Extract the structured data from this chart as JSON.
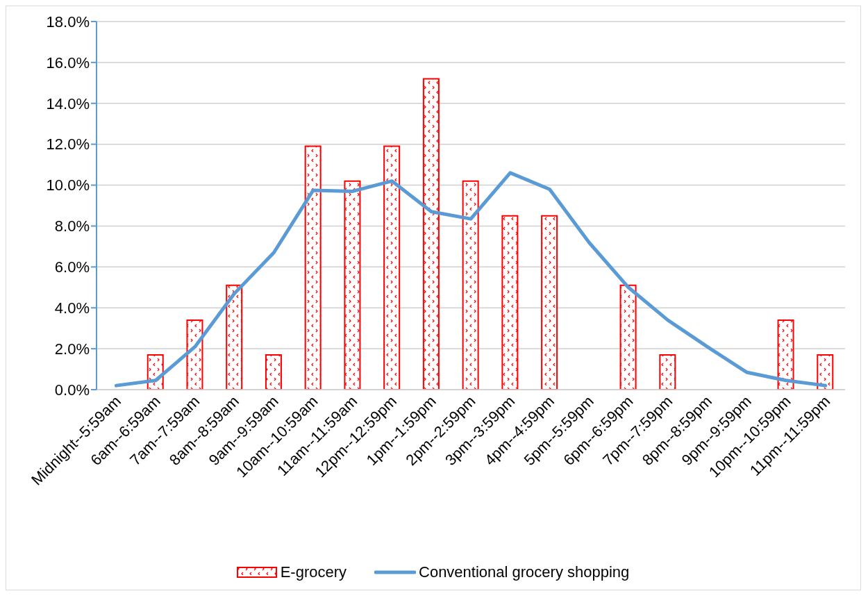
{
  "chart_data": {
    "type": "bar",
    "categories": [
      "Midnight--5:59am",
      "6am--6:59am",
      "7am--7:59am",
      "8am--8:59am",
      "9am--9:59am",
      "10am--10:59am",
      "11am--11:59am",
      "12pm--12:59pm",
      "1pm--1:59pm",
      "2pm--2:59pm",
      "3pm--3:59pm",
      "4pm--4:59pm",
      "5pm--5:59pm",
      "6pm--6:59pm",
      "7pm--7:59pm",
      "8pm--8:59pm",
      "9pm--9:59pm",
      "10pm--10:59pm",
      "11pm--11:59pm"
    ],
    "series": [
      {
        "name": "E-grocery",
        "color": "#ff0000",
        "values": [
          null,
          1.7,
          3.4,
          5.1,
          1.7,
          11.9,
          10.2,
          11.9,
          15.2,
          10.2,
          8.5,
          8.5,
          null,
          5.1,
          1.7,
          null,
          null,
          3.4,
          1.7
        ]
      },
      {
        "name": "Conventional grocery shopping",
        "type": "line",
        "color": "#5b9bd5",
        "values": [
          0.2,
          0.45,
          2.1,
          4.7,
          6.7,
          9.75,
          9.7,
          10.2,
          8.7,
          8.35,
          10.6,
          9.8,
          7.2,
          5.0,
          3.4,
          2.1,
          0.85,
          0.45,
          0.2
        ]
      }
    ],
    "ylim": [
      0,
      18
    ],
    "yticks": [
      {
        "value": 0,
        "label": "0.0%"
      },
      {
        "value": 2,
        "label": "2.0%"
      },
      {
        "value": 4,
        "label": "4.0%"
      },
      {
        "value": 6,
        "label": "6.0%"
      },
      {
        "value": 8,
        "label": "8.0%"
      },
      {
        "value": 10,
        "label": "10.0%"
      },
      {
        "value": 12,
        "label": "12.0%"
      },
      {
        "value": 14,
        "label": "14.0%"
      },
      {
        "value": 16,
        "label": "16.0%"
      },
      {
        "value": 18,
        "label": "18.0%"
      }
    ],
    "grid": "y",
    "legend": "bottom",
    "marker": "none",
    "line_style": "solid"
  }
}
